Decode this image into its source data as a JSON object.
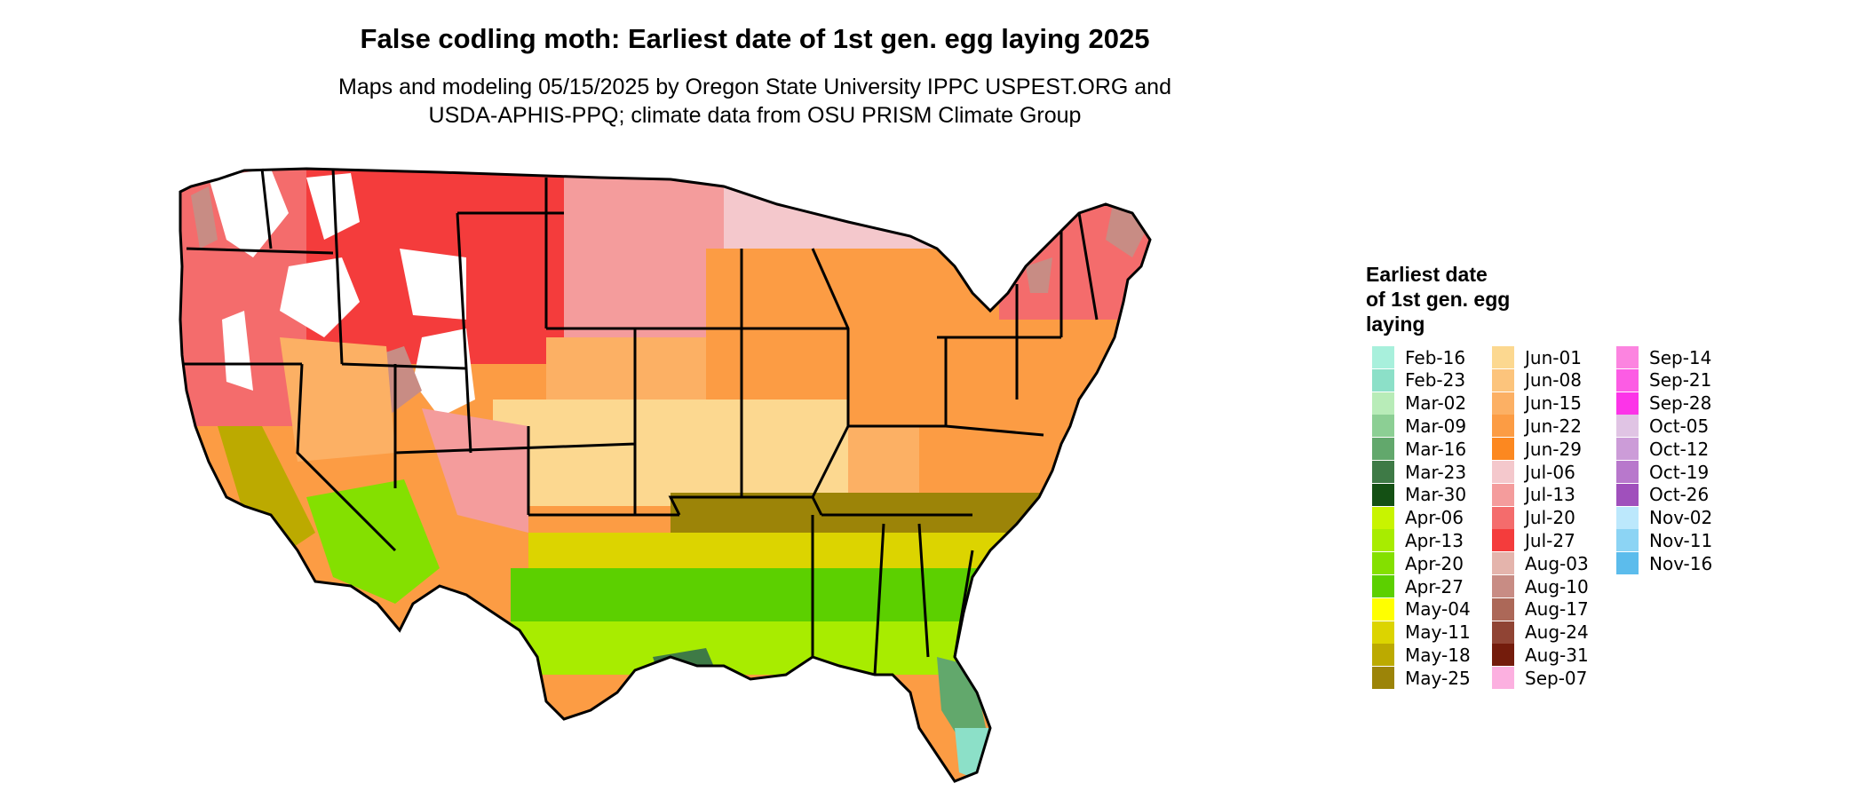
{
  "title": "False codling moth: Earliest date of 1st gen. egg laying 2025",
  "subtitle_line1": "Maps and modeling 05/15/2025 by Oregon State University IPPC USPEST.ORG and",
  "subtitle_line2": "USDA-APHIS-PPQ; climate data from OSU PRISM Climate Group",
  "legend": {
    "title_lines": [
      "Earliest date",
      "of 1st gen. egg",
      "laying"
    ],
    "columns": [
      [
        {
          "label": "Feb-16",
          "color": "#a8f0dc"
        },
        {
          "label": "Feb-23",
          "color": "#8ce0c8"
        },
        {
          "label": "Mar-02",
          "color": "#b8ecb8"
        },
        {
          "label": "Mar-09",
          "color": "#8ccf94"
        },
        {
          "label": "Mar-16",
          "color": "#62a86c"
        },
        {
          "label": "Mar-23",
          "color": "#3e7a46"
        },
        {
          "label": "Mar-30",
          "color": "#145014"
        },
        {
          "label": "Apr-06",
          "color": "#c8f400"
        },
        {
          "label": "Apr-13",
          "color": "#a8ec00"
        },
        {
          "label": "Apr-20",
          "color": "#84e000"
        },
        {
          "label": "Apr-27",
          "color": "#5cd000"
        },
        {
          "label": "May-04",
          "color": "#ffff00"
        },
        {
          "label": "May-11",
          "color": "#dcd400"
        },
        {
          "label": "May-18",
          "color": "#bcaa00"
        },
        {
          "label": "May-25",
          "color": "#9c8408"
        }
      ],
      [
        {
          "label": "Jun-01",
          "color": "#fcd890"
        },
        {
          "label": "Jun-08",
          "color": "#fcc47c"
        },
        {
          "label": "Jun-15",
          "color": "#fcb064"
        },
        {
          "label": "Jun-22",
          "color": "#fc9c44"
        },
        {
          "label": "Jun-29",
          "color": "#fc8820"
        },
        {
          "label": "Jul-06",
          "color": "#f4c8cc"
        },
        {
          "label": "Jul-13",
          "color": "#f49c9c"
        },
        {
          "label": "Jul-20",
          "color": "#f46c6c"
        },
        {
          "label": "Jul-27",
          "color": "#f43c3c"
        },
        {
          "label": "Aug-03",
          "color": "#e4b4ac"
        },
        {
          "label": "Aug-10",
          "color": "#c88c84"
        },
        {
          "label": "Aug-17",
          "color": "#ac6858"
        },
        {
          "label": "Aug-24",
          "color": "#904434"
        },
        {
          "label": "Aug-31",
          "color": "#741c0c"
        },
        {
          "label": "Sep-07",
          "color": "#fcb0e0"
        }
      ],
      [
        {
          "label": "Sep-14",
          "color": "#fc84e0"
        },
        {
          "label": "Sep-21",
          "color": "#fc5ce4"
        },
        {
          "label": "Sep-28",
          "color": "#fc34e8"
        },
        {
          "label": "Oct-05",
          "color": "#e0c4e4"
        },
        {
          "label": "Oct-12",
          "color": "#cc9cd8"
        },
        {
          "label": "Oct-19",
          "color": "#b878cc"
        },
        {
          "label": "Oct-26",
          "color": "#a050bc"
        },
        {
          "label": "Nov-02",
          "color": "#bce8fc"
        },
        {
          "label": "Nov-11",
          "color": "#8cd4f4"
        },
        {
          "label": "Nov-16",
          "color": "#5cbcec"
        }
      ]
    ]
  },
  "map_regions": [
    {
      "region": "pacific-northwest",
      "date": "Jul-20",
      "color": "#f46c6c"
    },
    {
      "region": "northern-rockies",
      "date": "Jul-27",
      "color": "#f43c3c"
    },
    {
      "region": "northern-plains",
      "date": "Jul-13",
      "color": "#f49c9c"
    },
    {
      "region": "upper-midwest",
      "date": "Jul-06",
      "color": "#f4c8cc"
    },
    {
      "region": "central-plains",
      "date": "Jun-15",
      "color": "#fcb064"
    },
    {
      "region": "midwest",
      "date": "Jun-22",
      "color": "#fc9c44"
    },
    {
      "region": "northeast",
      "date": "Jul-20",
      "color": "#f46c6c"
    },
    {
      "region": "southern-plains",
      "date": "Jun-01",
      "color": "#fcd890"
    },
    {
      "region": "upper-south",
      "date": "May-25",
      "color": "#9c8408"
    },
    {
      "region": "deep-south",
      "date": "Apr-27",
      "color": "#5cd000"
    },
    {
      "region": "gulf-coast",
      "date": "Apr-13",
      "color": "#a8ec00"
    },
    {
      "region": "south-texas",
      "date": "Mar-23",
      "color": "#3e7a46"
    },
    {
      "region": "south-florida",
      "date": "Feb-23",
      "color": "#8ce0c8"
    },
    {
      "region": "desert-southwest",
      "date": "Apr-20",
      "color": "#84e000"
    },
    {
      "region": "california-valley",
      "date": "May-18",
      "color": "#bcaa00"
    }
  ]
}
